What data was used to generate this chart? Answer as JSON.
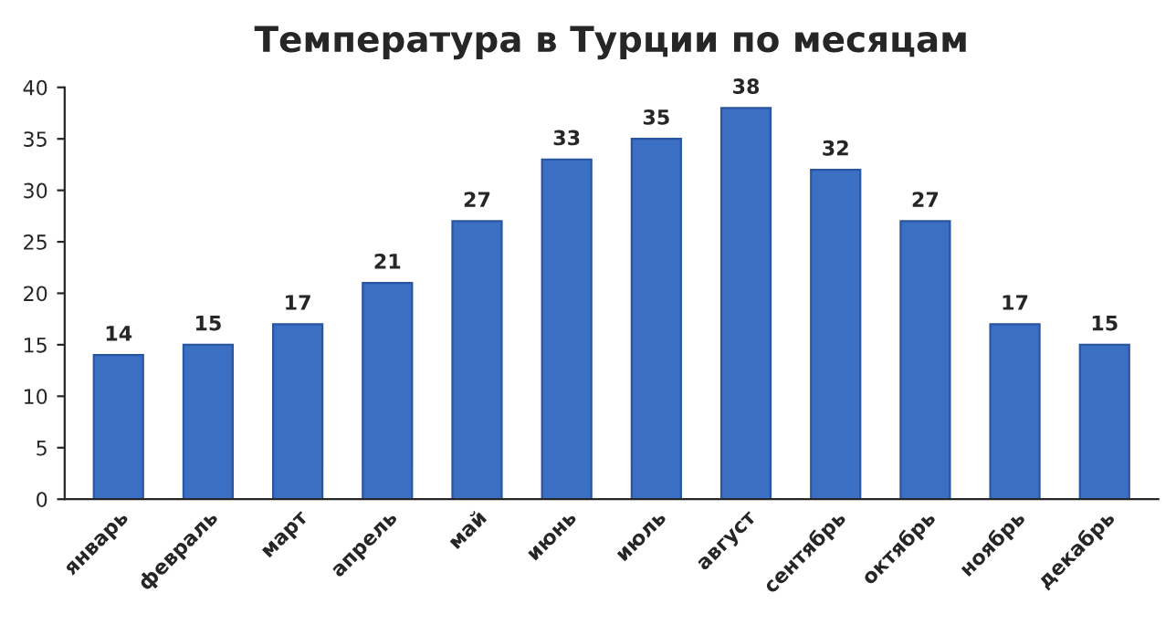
{
  "chart_data": {
    "type": "bar",
    "title": "Температура в Турции по месяцам",
    "categories": [
      "январь",
      "февраль",
      "март",
      "апрель",
      "май",
      "июнь",
      "июль",
      "август",
      "сентябрь",
      "октябрь",
      "ноябрь",
      "декабрь"
    ],
    "values": [
      14,
      15,
      17,
      21,
      27,
      33,
      35,
      38,
      32,
      27,
      17,
      15
    ],
    "color": "#3a6fc4",
    "ylim": [
      0,
      40
    ],
    "yticks": [
      0,
      5,
      10,
      15,
      20,
      25,
      30,
      35,
      40
    ],
    "grid": false,
    "data_labels": true
  }
}
